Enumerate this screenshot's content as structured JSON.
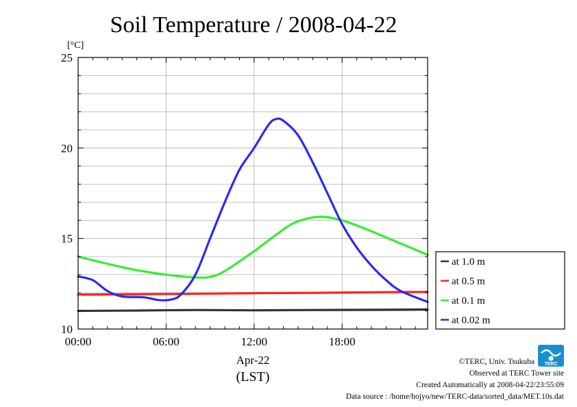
{
  "chart_data": {
    "type": "line",
    "title": "Soil Temperature / 2008-04-22",
    "ylabel": "[°C]",
    "xlabel": "(LST)",
    "date_label": "Apr-22",
    "ylim": [
      10,
      25
    ],
    "xlim": [
      0,
      23.83
    ],
    "yticks": [
      10,
      15,
      20,
      25
    ],
    "xticks": [
      {
        "value": 0,
        "label": "00:00"
      },
      {
        "value": 6,
        "label": "06:00"
      },
      {
        "value": 12,
        "label": "12:00"
      },
      {
        "value": 18,
        "label": "18:00"
      }
    ],
    "grid": true,
    "legend_position": "right",
    "series": [
      {
        "name": "at 1.0 m",
        "color": "#333333",
        "x": [
          0,
          4,
          8,
          12,
          16,
          20,
          23.83
        ],
        "y": [
          11.0,
          11.02,
          11.05,
          11.03,
          11.05,
          11.06,
          11.08
        ]
      },
      {
        "name": "at 0.5 m",
        "color": "#ff2020",
        "x": [
          0,
          4,
          8,
          12,
          16,
          20,
          23.83
        ],
        "y": [
          11.9,
          11.92,
          11.95,
          11.98,
          12.0,
          12.03,
          12.05
        ]
      },
      {
        "name": "at 0.1 m",
        "color": "#33ee33",
        "x": [
          0,
          2,
          4,
          6,
          8,
          9,
          10,
          12,
          14,
          15,
          16.5,
          18,
          20,
          23.83
        ],
        "y": [
          14.0,
          13.6,
          13.25,
          13.0,
          12.85,
          12.88,
          13.2,
          14.3,
          15.5,
          15.95,
          16.2,
          16.0,
          15.4,
          14.1
        ]
      },
      {
        "name": "at 0.02 m",
        "color": "#2a2aee",
        "x": [
          0,
          1,
          2,
          3,
          4.5,
          5.5,
          6.3,
          7,
          8,
          9,
          10,
          11,
          12,
          13,
          13.5,
          14,
          15,
          16,
          17,
          18,
          19,
          20,
          21,
          22,
          23.83
        ],
        "y": [
          12.9,
          12.7,
          12.1,
          11.8,
          11.75,
          11.6,
          11.62,
          11.9,
          13.0,
          15.0,
          17.0,
          18.8,
          20.0,
          21.3,
          21.6,
          21.5,
          20.7,
          19.2,
          17.5,
          15.8,
          14.5,
          13.5,
          12.7,
          12.1,
          11.5
        ]
      }
    ]
  },
  "credits": {
    "logo_text": "TERC",
    "copyright": "©TERC, Univ. Tsukuba",
    "observed": "Observed at TERC Tower site",
    "created": "Created Automatically at 2008-04-22/23:55:09",
    "source": "Data source : /home/hojyo/new/TERC-data/sorted_data/MET.10s.dat"
  }
}
